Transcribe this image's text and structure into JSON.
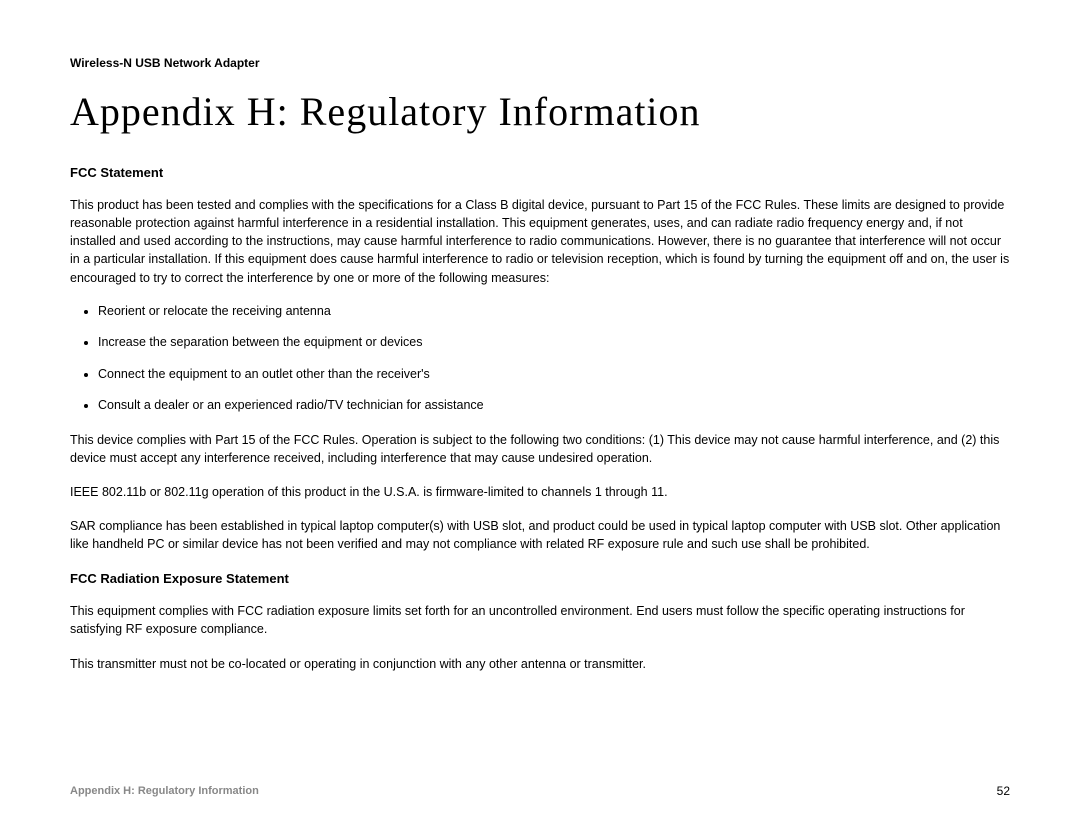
{
  "header": {
    "product_name": "Wireless-N USB Network Adapter"
  },
  "title": "Appendix H: Regulatory Information",
  "sections": {
    "fcc_statement": {
      "heading": "FCC Statement",
      "intro_paragraph": "This product has been tested and complies with the specifications for a Class B digital device, pursuant to Part 15 of the FCC Rules. These limits are designed to provide reasonable protection against harmful interference in a residential installation. This equipment generates, uses, and can radiate radio frequency energy and, if not installed and used according to the instructions, may cause harmful interference to radio communications. However, there is no guarantee that interference will not occur in a particular installation. If this equipment does cause harmful interference to radio or television reception, which is found by turning the equipment off and on, the user is encouraged to try to correct the interference by one or more of the following measures:",
      "bullets": [
        "Reorient or relocate the receiving antenna",
        "Increase the separation between the equipment or devices",
        "Connect the equipment to an outlet other than the receiver's",
        "Consult a dealer or an experienced radio/TV technician for assistance"
      ],
      "paragraph_2": "This device complies with Part 15 of the FCC Rules. Operation is subject to the following two conditions: (1) This device may not cause harmful interference, and (2) this device must accept any interference received, including interference that may cause undesired operation.",
      "paragraph_3": "IEEE 802.11b or 802.11g operation of this product in the U.S.A. is firmware-limited to channels 1 through 11.",
      "paragraph_4": "SAR compliance has been established in typical laptop computer(s) with USB slot, and product could be used in typical laptop computer with USB slot. Other application like handheld PC or similar device has not been verified and may not compliance with related RF exposure rule and such use shall be prohibited."
    },
    "fcc_radiation": {
      "heading": "FCC Radiation Exposure Statement",
      "paragraph_1": "This equipment complies with FCC radiation exposure limits set forth for an uncontrolled environment. End users must follow the specific operating instructions for satisfying RF exposure compliance.",
      "paragraph_2": "This transmitter must not be co-located or operating in conjunction with any other antenna or transmitter."
    }
  },
  "footer": {
    "label": "Appendix H: Regulatory Information",
    "page_number": "52"
  },
  "colors": {
    "text_primary": "#000000",
    "text_footer": "#888888",
    "background": "#ffffff"
  },
  "typography": {
    "header_fontsize": 12,
    "title_fontsize": 40,
    "section_heading_fontsize": 13,
    "body_fontsize": 12.5,
    "footer_fontsize": 11
  }
}
